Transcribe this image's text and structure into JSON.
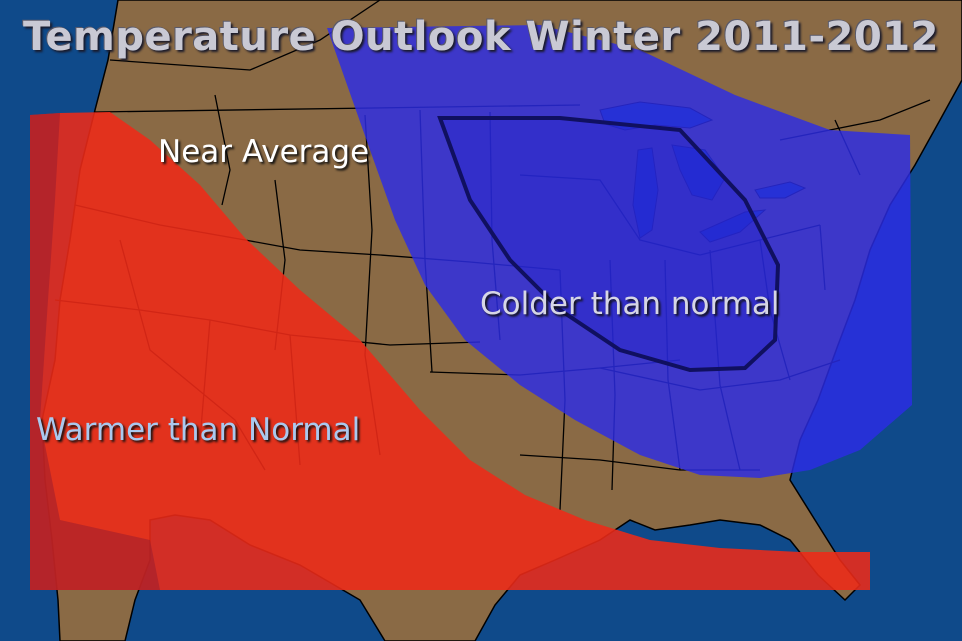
{
  "title": "Temperature Outlook Winter 2011-2012",
  "regions": {
    "near_average": "Near Average",
    "colder": "Colder than normal",
    "warmer": "Warmer than Normal"
  },
  "colors": {
    "ocean": "#0f4a8a",
    "land": "#8a6a45",
    "warm": "#ee2a18",
    "cold": "#2c2ce6",
    "border": "#000000"
  }
}
